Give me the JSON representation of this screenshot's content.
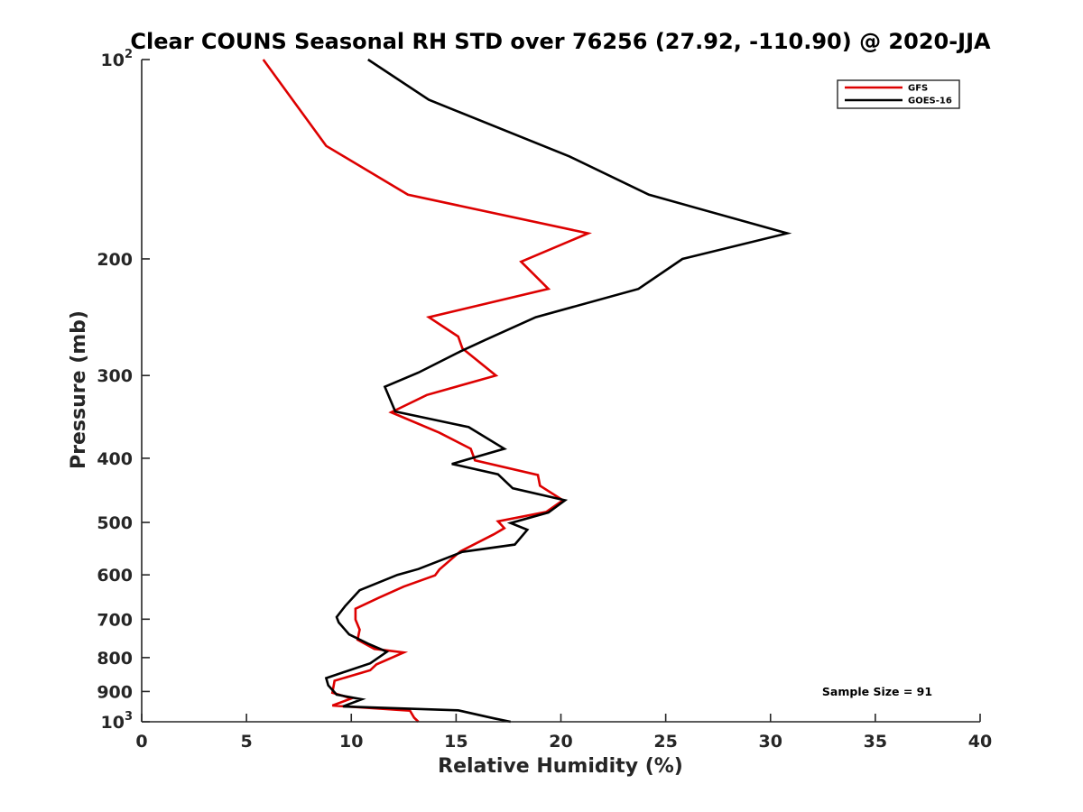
{
  "chart_data": {
    "type": "line",
    "title": "Clear COUNS Seasonal RH STD over 76256 (27.92, -110.90) @ 2020-JJA",
    "xlabel": "Relative Humidity (%)",
    "ylabel": "Pressure (mb)",
    "xlim": [
      0,
      40
    ],
    "ylim": [
      100,
      1000
    ],
    "yscale": "log",
    "y_reversed": true,
    "xticks": [
      0,
      5,
      10,
      15,
      20,
      25,
      30,
      35,
      40
    ],
    "xtick_labels": [
      "0",
      "5",
      "10",
      "15",
      "20",
      "25",
      "30",
      "35",
      "40"
    ],
    "yticks": [
      {
        "value": 100,
        "base": "10",
        "exp": "2"
      },
      {
        "value": 200,
        "base": "200",
        "exp": ""
      },
      {
        "value": 300,
        "base": "300",
        "exp": ""
      },
      {
        "value": 400,
        "base": "400",
        "exp": ""
      },
      {
        "value": 500,
        "base": "500",
        "exp": ""
      },
      {
        "value": 600,
        "base": "600",
        "exp": ""
      },
      {
        "value": 700,
        "base": "700",
        "exp": ""
      },
      {
        "value": 800,
        "base": "800",
        "exp": ""
      },
      {
        "value": 900,
        "base": "900",
        "exp": ""
      },
      {
        "value": 1000,
        "base": "10",
        "exp": "3"
      }
    ],
    "grid": false,
    "legend_position": "top-right",
    "annotation": "Sample Size = 91",
    "series": [
      {
        "name": "GFS",
        "color": "#dd0000",
        "points": [
          [
            5.8,
            100
          ],
          [
            7.2,
            115
          ],
          [
            8.8,
            135
          ],
          [
            12.7,
            160
          ],
          [
            21.3,
            183
          ],
          [
            18.1,
            202
          ],
          [
            19.4,
            222
          ],
          [
            13.7,
            245
          ],
          [
            15.1,
            262
          ],
          [
            15.3,
            273
          ],
          [
            16.9,
            300
          ],
          [
            13.6,
            321
          ],
          [
            11.9,
            341
          ],
          [
            14.2,
            366
          ],
          [
            15.7,
            387
          ],
          [
            15.9,
            403
          ],
          [
            18.9,
            424
          ],
          [
            19.0,
            440
          ],
          [
            20.1,
            463
          ],
          [
            19.3,
            482
          ],
          [
            17.0,
            498
          ],
          [
            17.3,
            510
          ],
          [
            16.8,
            521
          ],
          [
            15.2,
            553
          ],
          [
            14.2,
            589
          ],
          [
            14.0,
            601
          ],
          [
            12.5,
            625
          ],
          [
            11.3,
            650
          ],
          [
            10.2,
            675
          ],
          [
            10.2,
            701
          ],
          [
            10.4,
            726
          ],
          [
            10.3,
            752
          ],
          [
            11.1,
            776
          ],
          [
            12.5,
            786
          ],
          [
            11.2,
            819
          ],
          [
            10.9,
            836
          ],
          [
            9.2,
            867
          ],
          [
            9.1,
            904
          ],
          [
            10.0,
            922
          ],
          [
            9.1,
            945
          ],
          [
            12.8,
            962
          ],
          [
            13.0,
            986
          ],
          [
            13.2,
            1000
          ]
        ]
      },
      {
        "name": "GOES-16",
        "color": "#000000",
        "points": [
          [
            10.8,
            100
          ],
          [
            13.7,
            115
          ],
          [
            20.4,
            140
          ],
          [
            24.2,
            160
          ],
          [
            30.8,
            183
          ],
          [
            25.8,
            200
          ],
          [
            23.7,
            222
          ],
          [
            18.8,
            245
          ],
          [
            16.4,
            265
          ],
          [
            15.2,
            276
          ],
          [
            13.2,
            297
          ],
          [
            11.6,
            312
          ],
          [
            12.1,
            340
          ],
          [
            15.6,
            359
          ],
          [
            17.3,
            387
          ],
          [
            14.8,
            408
          ],
          [
            17.0,
            423
          ],
          [
            17.7,
            444
          ],
          [
            20.2,
            463
          ],
          [
            19.4,
            483
          ],
          [
            17.6,
            501
          ],
          [
            18.4,
            513
          ],
          [
            17.8,
            540
          ],
          [
            15.3,
            554
          ],
          [
            13.2,
            588
          ],
          [
            12.2,
            600
          ],
          [
            10.4,
            633
          ],
          [
            9.7,
            669
          ],
          [
            9.3,
            695
          ],
          [
            9.4,
            708
          ],
          [
            9.9,
            738
          ],
          [
            10.8,
            762
          ],
          [
            11.7,
            784
          ],
          [
            10.9,
            816
          ],
          [
            8.8,
            859
          ],
          [
            8.9,
            881
          ],
          [
            9.3,
            910
          ],
          [
            10.5,
            925
          ],
          [
            9.6,
            948
          ],
          [
            15.1,
            961
          ],
          [
            16.8,
            988
          ],
          [
            17.6,
            1000
          ]
        ]
      }
    ]
  }
}
